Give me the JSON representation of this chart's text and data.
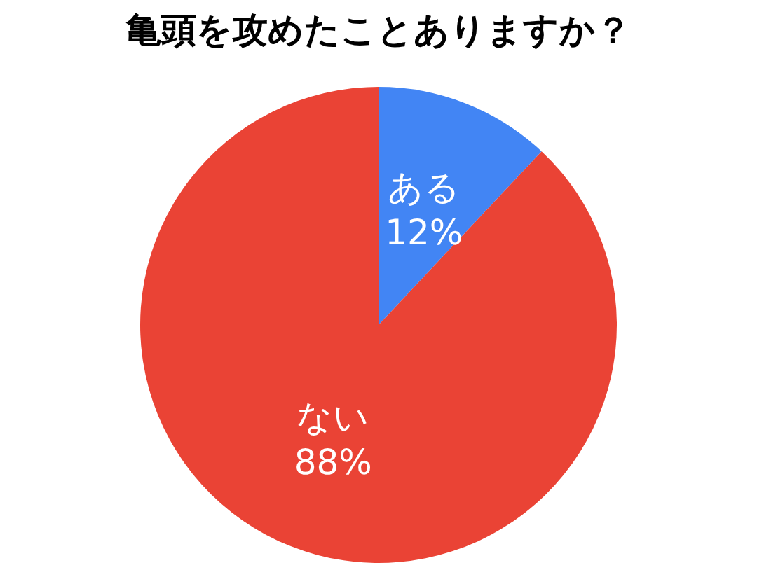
{
  "chart_data": {
    "type": "pie",
    "title": "亀頭を攻めたことありますか？",
    "categories": [
      "ある",
      "ない"
    ],
    "values": [
      12,
      88
    ],
    "value_labels": [
      "12%",
      "88%"
    ],
    "colors": [
      "#4285f4",
      "#ea4335"
    ]
  }
}
